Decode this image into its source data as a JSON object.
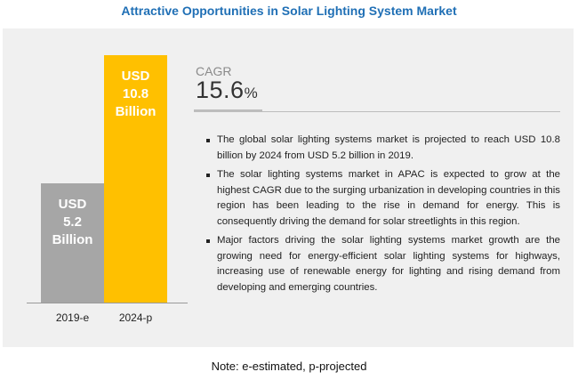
{
  "title": "Attractive Opportunities in Solar Lighting System Market",
  "colors": {
    "title": "#1f6fb5",
    "bar_2019": "#a6a6a6",
    "bar_2024": "#ffc000",
    "panel": "#f0f0f0"
  },
  "cagr": {
    "label": "CAGR",
    "value": "15.6",
    "unit": "%"
  },
  "bullets": [
    "The global solar lighting systems market is projected to reach USD 10.8 billion by 2024 from USD 5.2 billion in 2019.",
    "The solar lighting systems market in APAC is expected to grow at the highest CAGR due to the surging urbanization in developing countries in this region has been leading to the rise in demand for energy. This is consequently driving the demand for solar streetlights in this region.",
    "Major factors driving the solar lighting systems market growth are the growing need for energy-efficient solar lighting systems for highways, increasing use of renewable energy for lighting and rising demand from developing and emerging countries."
  ],
  "note": "Note: e-estimated, p-projected",
  "chart_data": {
    "type": "bar",
    "title": "Attractive Opportunities in Solar Lighting System Market",
    "categories": [
      "2019-e",
      "2024-p"
    ],
    "values": [
      5.2,
      10.8
    ],
    "unit": "USD Billion",
    "bar_labels": [
      [
        "USD",
        "5.2",
        "Billion"
      ],
      [
        "USD",
        "10.8",
        "Billion"
      ]
    ],
    "colors": [
      "#a6a6a6",
      "#ffc000"
    ],
    "xlabel": "",
    "ylabel": "",
    "ylim": [
      0,
      10.8
    ],
    "grid": false,
    "legend": "none"
  }
}
